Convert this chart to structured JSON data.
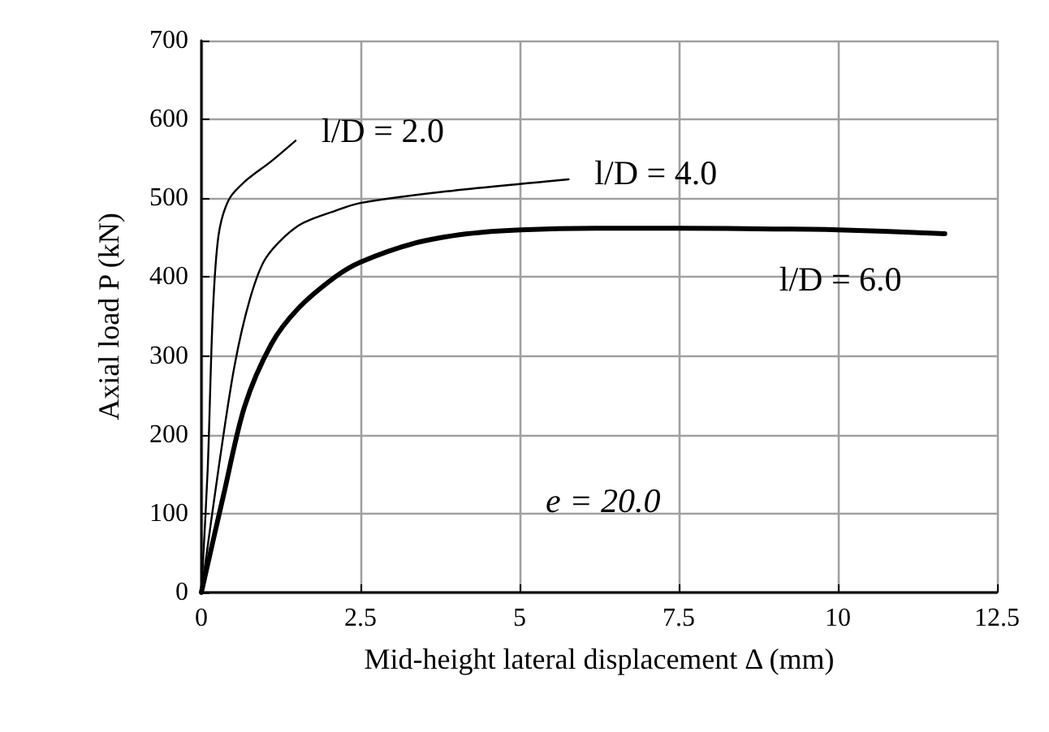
{
  "chart_data": {
    "type": "line",
    "xlabel": "Mid-height lateral displacement Δ (mm)",
    "ylabel": "Axial load P (kN)",
    "xlim": [
      0,
      12.5
    ],
    "xticks": [
      0,
      2.5,
      5,
      7.5,
      10,
      12.5
    ],
    "ylim": [
      0,
      700
    ],
    "yticks": [
      0,
      100,
      200,
      300,
      400,
      500,
      600,
      700
    ],
    "grid": true,
    "marker": "none",
    "line_style": "solid",
    "series": [
      {
        "name": "l/D = 2.0",
        "color": "#000000",
        "x": [
          0,
          0.1,
          0.18,
          0.27,
          0.43,
          0.68,
          1.1,
          1.48
        ],
        "values": [
          0,
          157,
          354,
          453,
          498,
          521,
          547,
          573
        ]
      },
      {
        "name": "l/D = 4.0",
        "color": "#000000",
        "x": [
          0,
          0.27,
          0.52,
          0.77,
          1.02,
          1.52,
          2.1,
          2.5,
          3.77,
          5.77
        ],
        "values": [
          0,
          157,
          287,
          374,
          425,
          465,
          484,
          494,
          508,
          524
        ]
      },
      {
        "name": "l/D = 6.0",
        "color": "#000000",
        "x": [
          0,
          0.35,
          0.68,
          1.1,
          1.52,
          2.1,
          2.5,
          3.35,
          4.18,
          5.02,
          6.2,
          7.52,
          9,
          10.0,
          11.68
        ],
        "values": [
          0,
          124,
          236,
          315,
          360,
          400,
          419,
          443,
          455,
          460,
          462,
          462,
          461,
          460,
          455
        ]
      }
    ],
    "annotations": [
      "e = 20.0"
    ]
  }
}
